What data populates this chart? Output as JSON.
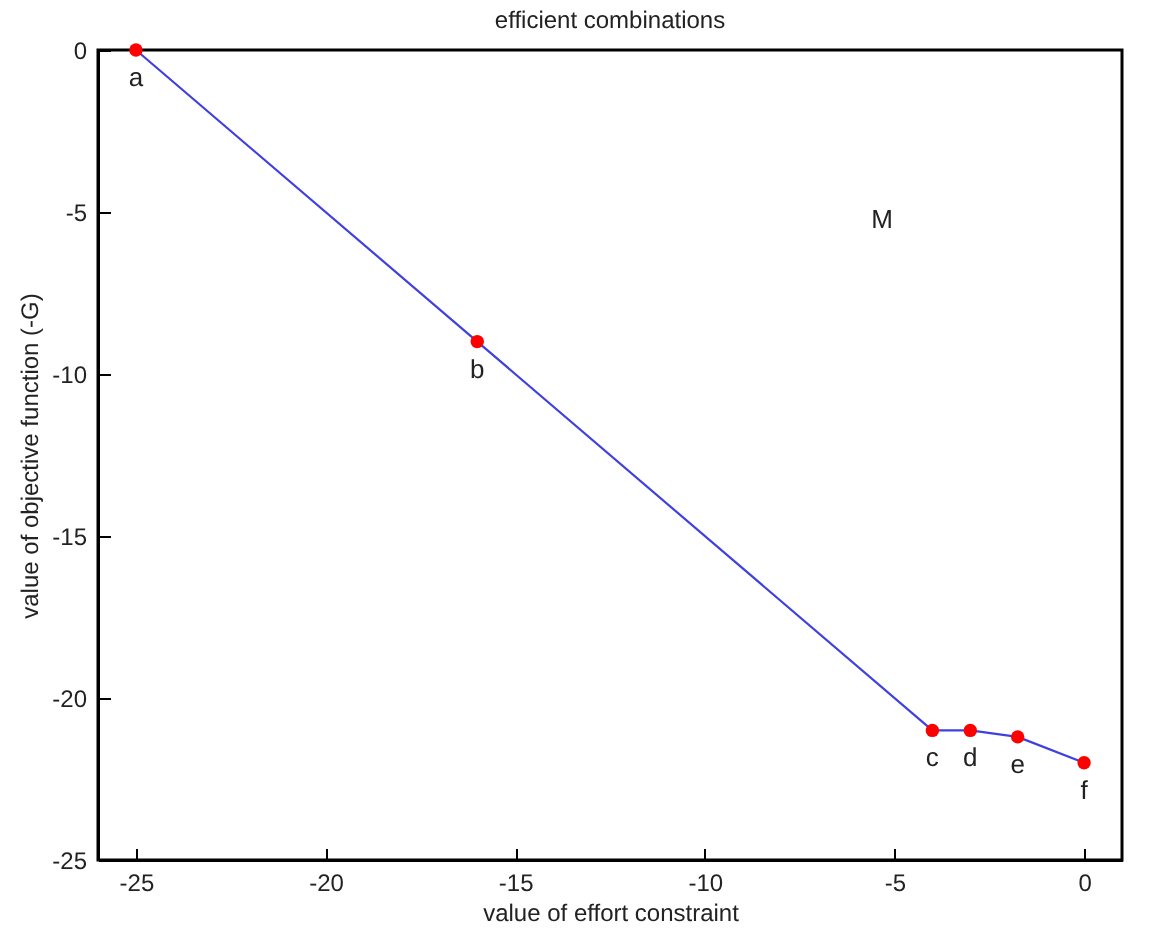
{
  "chart_data": {
    "type": "line",
    "title": "efficient combinations",
    "xlabel": "value of effort constraint",
    "ylabel": "value of objective function (-G)",
    "x": [
      -25,
      -16,
      -4,
      -3,
      -1.75,
      0
    ],
    "series": [
      {
        "type": "line",
        "color": "#4040e0",
        "marker": "none",
        "values": [
          0,
          -9,
          -21,
          -21,
          -21.2,
          -22
        ]
      },
      {
        "type": "scatter",
        "color": "#ff0000",
        "marker": "circle",
        "values": [
          0,
          -9,
          -21,
          -21,
          -21.2,
          -22
        ]
      }
    ],
    "xlim": [
      -26,
      1
    ],
    "xticks": [
      -25,
      -20,
      -15,
      -10,
      -5,
      0
    ],
    "ylim": [
      -25,
      0
    ],
    "yticks": [
      -25,
      -20,
      -15,
      -10,
      -5,
      0
    ],
    "grid": false,
    "line_style": "solid",
    "annotations": [
      {
        "text": "a",
        "x": -25,
        "y": 0
      },
      {
        "text": "b",
        "x": -16,
        "y": -9
      },
      {
        "text": "c",
        "x": -4,
        "y": -21
      },
      {
        "text": "d",
        "x": -3,
        "y": -21
      },
      {
        "text": "e",
        "x": -1.75,
        "y": -21.2
      },
      {
        "text": "f",
        "x": 0,
        "y": -22
      },
      "M"
    ]
  }
}
